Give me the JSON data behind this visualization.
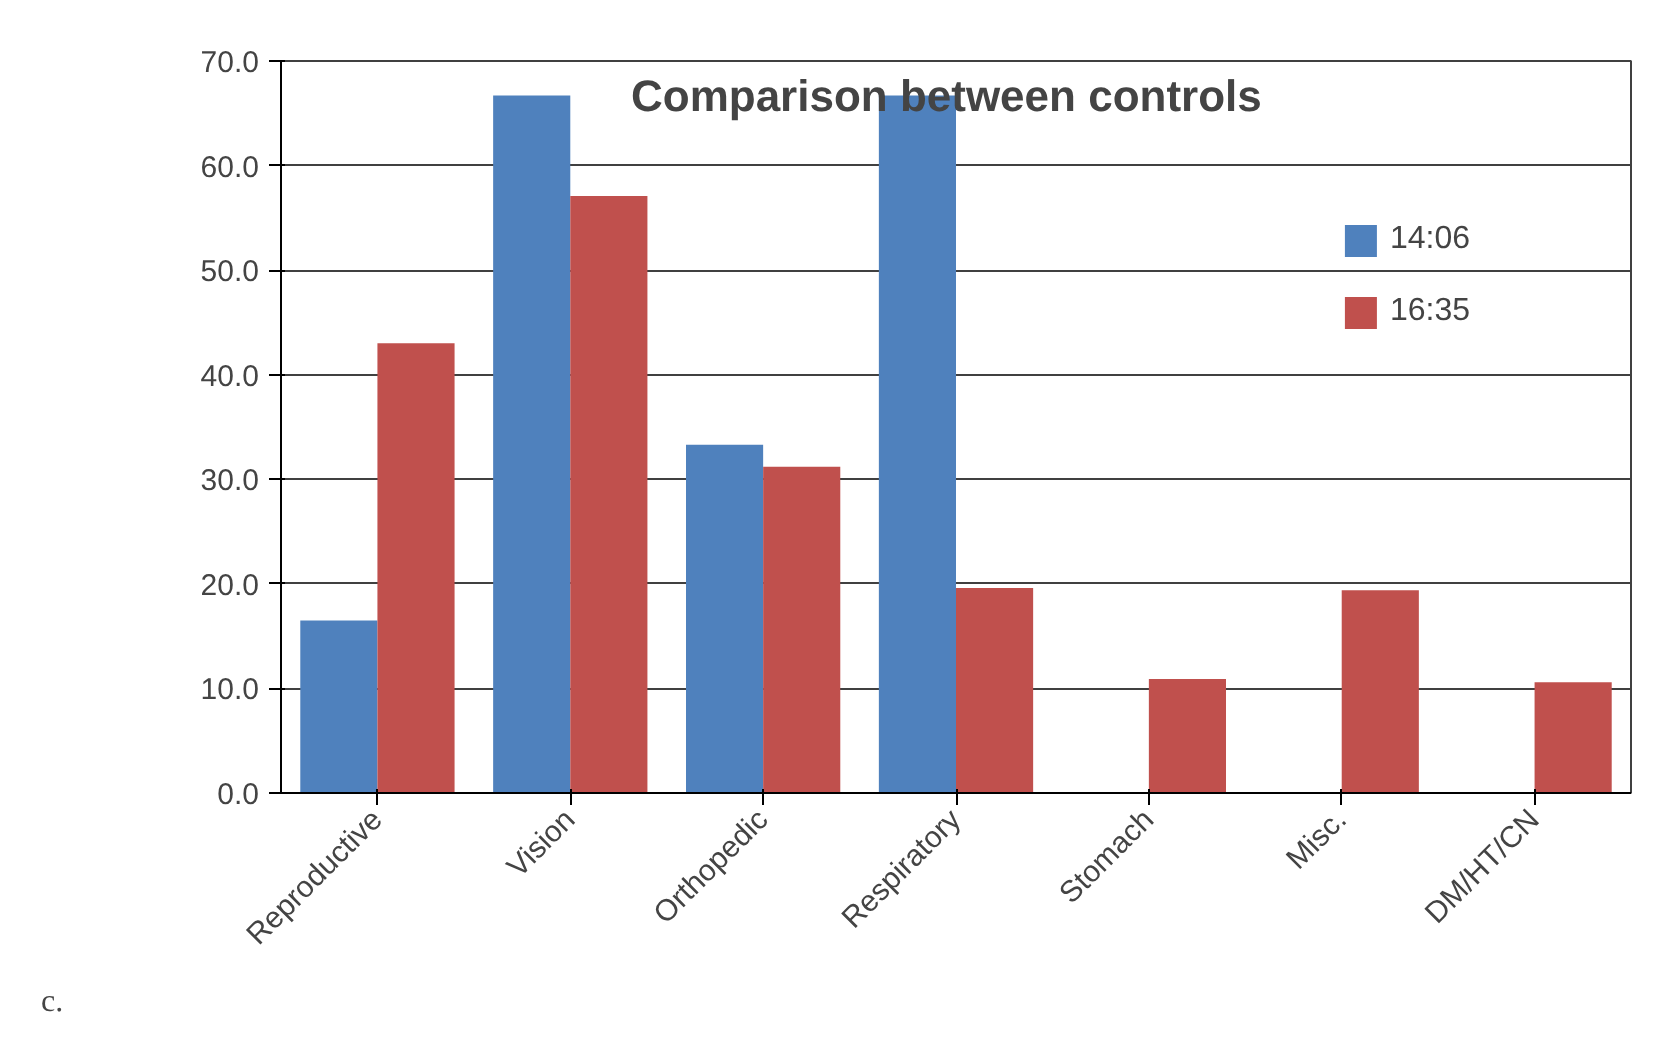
{
  "chart_data": {
    "type": "bar",
    "title": "Comparison between controls",
    "categories": [
      "Reproductive",
      "Vision",
      "Orthopedic",
      "Respiratory",
      "Stomach",
      "Misc.",
      "DM/HT/CN"
    ],
    "series": [
      {
        "name": "14:06",
        "color": "#4f81bd",
        "values": [
          16.5,
          66.7,
          33.3,
          66.7,
          0,
          0,
          0
        ]
      },
      {
        "name": "16:35",
        "color": "#c0504d",
        "values": [
          43.0,
          57.1,
          31.2,
          19.6,
          10.9,
          19.4,
          10.6
        ]
      }
    ],
    "ylim": [
      0,
      70
    ],
    "yticks": [
      {
        "value": 0,
        "label": "0.0"
      },
      {
        "value": 10,
        "label": "10.0"
      },
      {
        "value": 20,
        "label": "20.0"
      },
      {
        "value": 30,
        "label": "30.0"
      },
      {
        "value": 40,
        "label": "40.0"
      },
      {
        "value": 50,
        "label": "50.0"
      },
      {
        "value": 60,
        "label": "60.0"
      },
      {
        "value": 70,
        "label": "70.0"
      }
    ],
    "grid": "y",
    "legend": "top right",
    "annotations": [
      "c."
    ]
  }
}
